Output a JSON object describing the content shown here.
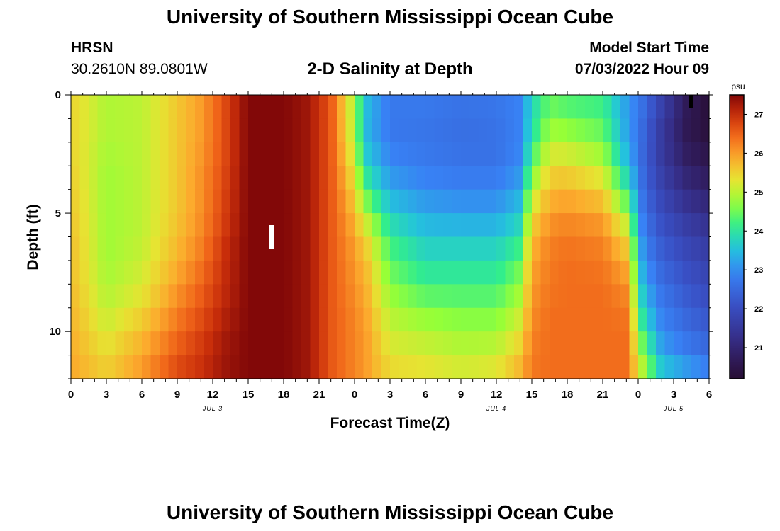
{
  "header": {
    "title": "University of Southern Mississippi Ocean Cube",
    "station": "HRSN",
    "coords": "30.2610N  89.0801W",
    "plot_title": "2-D Salinity at Depth",
    "start_label": "Model Start Time",
    "start_time": "07/03/2022 Hour 09"
  },
  "footer": {
    "title": "University of Southern Mississippi Ocean Cube"
  },
  "chart_data": {
    "type": "heatmap",
    "title": "2-D Salinity at Depth",
    "xlabel": "Forecast Time(Z)",
    "ylabel": "Depth (ft)",
    "x_range_hours": [
      0,
      54
    ],
    "x_tick_labels": [
      "0",
      "3",
      "6",
      "9",
      "12",
      "15",
      "18",
      "21",
      "0",
      "3",
      "6",
      "9",
      "12",
      "15",
      "18",
      "21",
      "0",
      "3",
      "6"
    ],
    "date_labels": [
      {
        "label": "JUL 3",
        "hour": 12
      },
      {
        "label": "JUL 4",
        "hour": 36
      },
      {
        "label": "JUL 5",
        "hour": 51
      }
    ],
    "y_range_ft": [
      0,
      12
    ],
    "y_ticks": [
      0,
      5,
      10
    ],
    "y_tick_labels": [
      "0",
      "5",
      "10"
    ],
    "colorbar": {
      "unit": "psu",
      "min": 20.2,
      "max": 27.5,
      "ticks": [
        21,
        22,
        23,
        24,
        25,
        26,
        27
      ],
      "tick_labels": [
        "21",
        "22",
        "23",
        "24",
        "25",
        "26",
        "27"
      ]
    },
    "depth_levels_ft": [
      0,
      1,
      2,
      3,
      4,
      5,
      6,
      7,
      8,
      9,
      10,
      11,
      12
    ],
    "profiles": [
      {
        "hour": 0,
        "values": [
          25.5,
          25.5,
          25.5,
          25.5,
          25.6,
          25.6,
          25.7,
          25.7,
          25.7,
          25.8,
          25.8,
          25.9,
          25.9
        ]
      },
      {
        "hour": 3,
        "values": [
          24.9,
          24.9,
          24.9,
          24.8,
          24.8,
          24.8,
          24.8,
          24.8,
          24.9,
          25.0,
          25.2,
          25.4,
          25.6
        ]
      },
      {
        "hour": 6,
        "values": [
          25.0,
          25.0,
          25.0,
          25.0,
          25.0,
          25.0,
          25.0,
          25.1,
          25.2,
          25.4,
          25.7,
          25.9,
          26.1
        ]
      },
      {
        "hour": 9,
        "values": [
          25.6,
          25.6,
          25.6,
          25.6,
          25.6,
          25.6,
          25.7,
          25.8,
          26.0,
          26.2,
          26.4,
          26.6,
          26.8
        ]
      },
      {
        "hour": 11,
        "values": [
          26.0,
          26.0,
          26.0,
          26.1,
          26.1,
          26.1,
          26.2,
          26.3,
          26.5,
          26.6,
          26.8,
          26.9,
          27.0
        ]
      },
      {
        "hour": 13,
        "values": [
          26.7,
          26.7,
          26.7,
          26.7,
          26.8,
          26.8,
          26.9,
          27.0,
          27.0,
          27.1,
          27.2,
          27.3,
          27.3
        ]
      },
      {
        "hour": 15,
        "values": [
          27.5,
          27.5,
          27.5,
          27.5,
          27.5,
          27.5,
          27.5,
          27.5,
          27.5,
          27.5,
          27.5,
          27.5,
          27.5
        ]
      },
      {
        "hour": 18,
        "values": [
          27.5,
          27.5,
          27.5,
          27.5,
          27.5,
          27.5,
          27.5,
          27.5,
          27.5,
          27.5,
          27.5,
          27.5,
          27.5
        ]
      },
      {
        "hour": 20,
        "values": [
          27.3,
          27.3,
          27.3,
          27.3,
          27.3,
          27.3,
          27.3,
          27.3,
          27.3,
          27.3,
          27.3,
          27.3,
          27.3
        ]
      },
      {
        "hour": 22,
        "values": [
          26.6,
          26.6,
          26.6,
          26.6,
          26.6,
          26.6,
          26.6,
          26.6,
          26.6,
          26.6,
          26.6,
          26.6,
          26.6
        ]
      },
      {
        "hour": 23.5,
        "values": [
          25.3,
          25.3,
          25.4,
          25.6,
          25.8,
          26.0,
          26.1,
          26.2,
          26.2,
          26.3,
          26.3,
          26.3,
          26.3
        ]
      },
      {
        "hour": 25,
        "values": [
          23.6,
          23.4,
          23.5,
          23.8,
          24.3,
          24.9,
          25.4,
          25.7,
          25.8,
          25.9,
          26.0,
          26.0,
          26.0
        ]
      },
      {
        "hour": 27,
        "values": [
          22.8,
          22.7,
          22.8,
          23.0,
          23.3,
          23.7,
          24.1,
          24.4,
          24.6,
          24.9,
          25.1,
          25.3,
          25.5
        ]
      },
      {
        "hour": 30,
        "values": [
          22.8,
          22.7,
          22.7,
          22.8,
          23.0,
          23.3,
          23.6,
          23.9,
          24.2,
          24.6,
          24.9,
          25.2,
          25.4
        ]
      },
      {
        "hour": 33,
        "values": [
          22.7,
          22.6,
          22.6,
          22.7,
          22.9,
          23.2,
          23.6,
          23.9,
          24.2,
          24.5,
          24.8,
          25.0,
          25.3
        ]
      },
      {
        "hour": 36,
        "values": [
          22.7,
          22.7,
          22.6,
          22.7,
          22.9,
          23.2,
          23.6,
          23.9,
          24.2,
          24.5,
          24.8,
          25.1,
          25.4
        ]
      },
      {
        "hour": 38,
        "values": [
          22.9,
          22.9,
          22.9,
          23.0,
          23.3,
          23.6,
          24.0,
          24.4,
          24.7,
          25.0,
          25.3,
          25.6,
          25.9
        ]
      },
      {
        "hour": 39,
        "values": [
          23.8,
          23.8,
          24.0,
          24.4,
          24.9,
          25.3,
          25.7,
          25.9,
          26.0,
          26.1,
          26.2,
          26.3,
          26.3
        ]
      },
      {
        "hour": 40.5,
        "values": [
          24.4,
          24.6,
          25.0,
          25.4,
          25.7,
          26.0,
          26.2,
          26.3,
          26.3,
          26.4,
          26.4,
          26.4,
          26.4
        ]
      },
      {
        "hour": 42,
        "values": [
          24.2,
          24.5,
          24.9,
          25.4,
          25.8,
          26.1,
          26.3,
          26.4,
          26.4,
          26.4,
          26.4,
          26.4,
          26.4
        ]
      },
      {
        "hour": 45,
        "values": [
          24.1,
          24.3,
          24.6,
          25.0,
          25.5,
          25.9,
          26.2,
          26.3,
          26.4,
          26.4,
          26.4,
          26.4,
          26.4
        ]
      },
      {
        "hour": 47,
        "values": [
          23.2,
          23.2,
          23.3,
          23.6,
          24.1,
          24.8,
          25.4,
          25.8,
          26.1,
          26.3,
          26.4,
          26.4,
          26.4
        ]
      },
      {
        "hour": 48.5,
        "values": [
          22.6,
          22.5,
          22.4,
          22.4,
          22.5,
          22.6,
          22.8,
          23.0,
          23.3,
          23.6,
          24.0,
          24.6,
          25.0
        ]
      },
      {
        "hour": 50,
        "values": [
          21.8,
          21.6,
          21.5,
          21.6,
          21.8,
          22.0,
          22.2,
          22.4,
          22.6,
          22.8,
          23.0,
          23.3,
          23.8
        ]
      },
      {
        "hour": 52,
        "values": [
          20.8,
          20.6,
          20.7,
          20.9,
          21.2,
          21.5,
          21.8,
          22.0,
          22.2,
          22.4,
          22.6,
          22.9,
          23.4
        ]
      },
      {
        "hour": 54,
        "values": [
          20.3,
          20.2,
          20.4,
          20.6,
          20.9,
          21.2,
          21.5,
          21.7,
          21.9,
          22.1,
          22.3,
          22.6,
          23.0
        ]
      }
    ]
  }
}
